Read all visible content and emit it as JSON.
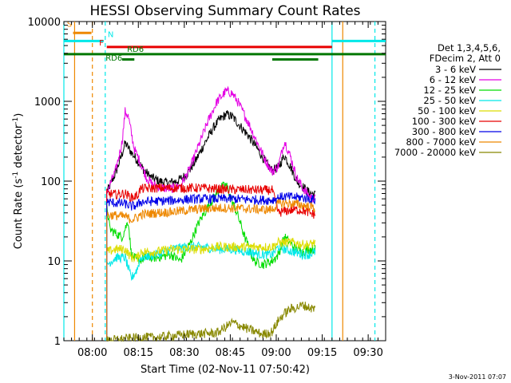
{
  "chart_data": {
    "type": "line",
    "title": "HESSI Observing Summary Count Rates",
    "xlabel": "Start Time (02-Nov-11 07:50:42)",
    "ylabel": "Count Rate (s⁻¹ detector⁻¹)",
    "ylabel_main": "Count Rate (s",
    "ylabel_exp1": "-1",
    "ylabel_mid": " detector",
    "ylabel_exp2": "-1",
    "ylabel_end": ")",
    "x_unit": "minutes after 07:50:42",
    "xlim": [
      0,
      105
    ],
    "ylim": [
      1,
      10000
    ],
    "y_scale": "log",
    "x_ticks": [
      {
        "label": "08:00",
        "value": 9.3
      },
      {
        "label": "08:15",
        "value": 24.3
      },
      {
        "label": "08:30",
        "value": 39.3
      },
      {
        "label": "08:45",
        "value": 54.3
      },
      {
        "label": "09:00",
        "value": 69.3
      },
      {
        "label": "09:15",
        "value": 84.3
      },
      {
        "label": "09:30",
        "value": 99.3
      }
    ],
    "y_ticks": [
      {
        "label": "1",
        "value": 1
      },
      {
        "label": "10",
        "value": 10
      },
      {
        "label": "100",
        "value": 100
      },
      {
        "label": "1000",
        "value": 1000
      },
      {
        "label": "10000",
        "value": 10000
      }
    ],
    "legend_header": [
      "Det 1,3,4,5,6,",
      "FDecim 2, Att 0"
    ],
    "series": [
      {
        "name": "3 - 6 keV",
        "color": "#000000",
        "points": [
          [
            14,
            72
          ],
          [
            17,
            130
          ],
          [
            19,
            220
          ],
          [
            20,
            300
          ],
          [
            22,
            230
          ],
          [
            24,
            180
          ],
          [
            26,
            140
          ],
          [
            28,
            115
          ],
          [
            31,
            100
          ],
          [
            34,
            95
          ],
          [
            37,
            100
          ],
          [
            40,
            120
          ],
          [
            43,
            180
          ],
          [
            46,
            300
          ],
          [
            49,
            480
          ],
          [
            51,
            600
          ],
          [
            53,
            690
          ],
          [
            55,
            640
          ],
          [
            57,
            520
          ],
          [
            60,
            380
          ],
          [
            63,
            260
          ],
          [
            66,
            170
          ],
          [
            68,
            135
          ],
          [
            70,
            150
          ],
          [
            72,
            210
          ],
          [
            74,
            150
          ],
          [
            76,
            100
          ],
          [
            78,
            85
          ],
          [
            80,
            72
          ],
          [
            82,
            68
          ]
        ]
      },
      {
        "name": "6 - 12 keV",
        "color": "#e400e4",
        "points": [
          [
            14,
            72
          ],
          [
            17,
            140
          ],
          [
            19,
            310
          ],
          [
            20,
            750
          ],
          [
            21,
            650
          ],
          [
            23,
            250
          ],
          [
            25,
            170
          ],
          [
            27,
            110
          ],
          [
            29,
            90
          ],
          [
            32,
            82
          ],
          [
            35,
            80
          ],
          [
            38,
            88
          ],
          [
            41,
            140
          ],
          [
            44,
            280
          ],
          [
            47,
            560
          ],
          [
            50,
            1000
          ],
          [
            53,
            1350
          ],
          [
            55,
            1250
          ],
          [
            57,
            950
          ],
          [
            60,
            560
          ],
          [
            63,
            310
          ],
          [
            66,
            175
          ],
          [
            68,
            130
          ],
          [
            70,
            155
          ],
          [
            72,
            320
          ],
          [
            74,
            200
          ],
          [
            76,
            110
          ],
          [
            78,
            82
          ],
          [
            80,
            65
          ],
          [
            82,
            60
          ]
        ]
      },
      {
        "name": "12 - 25 keV",
        "color": "#00dd00",
        "points": [
          [
            14,
            50
          ],
          [
            15,
            25
          ],
          [
            17,
            22
          ],
          [
            19,
            20
          ],
          [
            21,
            32
          ],
          [
            22,
            12
          ],
          [
            24,
            10
          ],
          [
            27,
            11
          ],
          [
            30,
            11
          ],
          [
            35,
            12
          ],
          [
            38,
            10
          ],
          [
            41,
            16
          ],
          [
            44,
            30
          ],
          [
            48,
            55
          ],
          [
            51,
            82
          ],
          [
            53,
            90
          ],
          [
            55,
            55
          ],
          [
            57,
            35
          ],
          [
            59,
            20
          ],
          [
            62,
            10
          ],
          [
            65,
            9
          ],
          [
            68,
            10
          ],
          [
            70,
            12
          ],
          [
            72,
            20
          ],
          [
            75,
            15
          ],
          [
            78,
            13
          ],
          [
            80,
            14
          ],
          [
            82,
            14
          ]
        ]
      },
      {
        "name": "25 - 50 keV",
        "color": "#00e8e8",
        "points": [
          [
            14,
            9
          ],
          [
            17,
            11
          ],
          [
            20,
            11
          ],
          [
            22,
            6
          ],
          [
            24,
            8
          ],
          [
            25,
            11
          ],
          [
            30,
            12
          ],
          [
            35,
            14
          ],
          [
            40,
            15
          ],
          [
            45,
            15
          ],
          [
            50,
            14
          ],
          [
            55,
            14
          ],
          [
            60,
            13
          ],
          [
            65,
            12
          ],
          [
            68,
            12
          ],
          [
            70,
            15
          ],
          [
            72,
            14
          ],
          [
            75,
            13
          ],
          [
            78,
            12
          ],
          [
            80,
            12
          ],
          [
            82,
            13
          ]
        ]
      },
      {
        "name": "50 - 100 keV",
        "color": "#dddd00",
        "points": [
          [
            14,
            13
          ],
          [
            17,
            14
          ],
          [
            20,
            14
          ],
          [
            22,
            11
          ],
          [
            24,
            11
          ],
          [
            25,
            13
          ],
          [
            30,
            13
          ],
          [
            35,
            14
          ],
          [
            40,
            14
          ],
          [
            45,
            14
          ],
          [
            50,
            15
          ],
          [
            55,
            15
          ],
          [
            60,
            15
          ],
          [
            65,
            15
          ],
          [
            68,
            15
          ],
          [
            70,
            17
          ],
          [
            72,
            17
          ],
          [
            75,
            17
          ],
          [
            78,
            16
          ],
          [
            80,
            16
          ],
          [
            82,
            17
          ]
        ]
      },
      {
        "name": "100 - 300 keV",
        "color": "#e80000",
        "points": [
          [
            14,
            70
          ],
          [
            17,
            68
          ],
          [
            20,
            70
          ],
          [
            22,
            62
          ],
          [
            24,
            66
          ],
          [
            25,
            80
          ],
          [
            30,
            82
          ],
          [
            35,
            82
          ],
          [
            40,
            82
          ],
          [
            45,
            82
          ],
          [
            50,
            80
          ],
          [
            55,
            78
          ],
          [
            60,
            78
          ],
          [
            65,
            77
          ],
          [
            68,
            77
          ],
          [
            70,
            40
          ],
          [
            72,
            42
          ],
          [
            75,
            44
          ],
          [
            78,
            43
          ],
          [
            80,
            40
          ],
          [
            82,
            38
          ]
        ]
      },
      {
        "name": "300 - 800 keV",
        "color": "#0000e8",
        "points": [
          [
            14,
            55
          ],
          [
            17,
            53
          ],
          [
            20,
            52
          ],
          [
            22,
            48
          ],
          [
            24,
            50
          ],
          [
            25,
            55
          ],
          [
            30,
            56
          ],
          [
            35,
            57
          ],
          [
            40,
            59
          ],
          [
            45,
            60
          ],
          [
            50,
            60
          ],
          [
            55,
            60
          ],
          [
            60,
            59
          ],
          [
            65,
            58
          ],
          [
            68,
            58
          ],
          [
            70,
            62
          ],
          [
            72,
            64
          ],
          [
            75,
            63
          ],
          [
            78,
            62
          ],
          [
            80,
            60
          ],
          [
            82,
            58
          ]
        ]
      },
      {
        "name": "800 - 7000 keV",
        "color": "#ee8800",
        "points": [
          [
            14,
            38
          ],
          [
            17,
            37
          ],
          [
            20,
            36
          ],
          [
            22,
            33
          ],
          [
            24,
            35
          ],
          [
            25,
            38
          ],
          [
            30,
            40
          ],
          [
            35,
            41
          ],
          [
            40,
            43
          ],
          [
            45,
            45
          ],
          [
            50,
            46
          ],
          [
            55,
            46
          ],
          [
            60,
            45
          ],
          [
            65,
            44
          ],
          [
            68,
            44
          ],
          [
            70,
            52
          ],
          [
            72,
            53
          ],
          [
            75,
            52
          ],
          [
            78,
            50
          ],
          [
            80,
            48
          ],
          [
            82,
            46
          ]
        ]
      },
      {
        "name": "7000 - 20000 keV",
        "color": "#888800",
        "points": [
          [
            14,
            1
          ],
          [
            25,
            1.1
          ],
          [
            30,
            1.1
          ],
          [
            40,
            1.2
          ],
          [
            50,
            1.25
          ],
          [
            55,
            1.7
          ],
          [
            60,
            1.4
          ],
          [
            65,
            1.2
          ],
          [
            68,
            1.3
          ],
          [
            70,
            1.8
          ],
          [
            72,
            2.2
          ],
          [
            74,
            2.5
          ],
          [
            76,
            2.6
          ],
          [
            78,
            2.8
          ],
          [
            80,
            2.6
          ],
          [
            82,
            2.5
          ]
        ]
      }
    ],
    "flag_bars": [
      {
        "label": "S",
        "color": "#ee8800",
        "x0": 3,
        "x1": 9,
        "y": 7200
      },
      {
        "label": "N",
        "color": "#00e8e8",
        "x0": 0,
        "x1": 13,
        "y": 5700
      },
      {
        "label": "N",
        "color": "#00e8e8",
        "x0": 87.5,
        "x1": 105,
        "y": 5700
      },
      {
        "label": "F",
        "color": "#e80000",
        "x0": 14,
        "x1": 87.5,
        "y": 4800
      },
      {
        "label": "RD6",
        "color": "#007700",
        "x0": 0,
        "x1": 105,
        "y": 3900
      },
      {
        "label": "RD6",
        "color": "#007700",
        "x0": 19,
        "x1": 23,
        "y": 3350
      },
      {
        "label": "RD6",
        "color": "#007700",
        "x0": 68,
        "x1": 83,
        "y": 3350
      }
    ],
    "flag_labels": [
      {
        "text": "S",
        "color": "#ee8800",
        "x": 1,
        "y": 8600
      },
      {
        "text": "N",
        "color": "#00e8e8",
        "x": 14.3,
        "y": 6400
      },
      {
        "text": "F",
        "color": "#e80000",
        "x": 11.5,
        "y": 5000
      },
      {
        "text": "RD6",
        "color": "#007700",
        "x": 20.6,
        "y": 4150
      },
      {
        "text": "RD6",
        "color": "#007700",
        "x": 13.6,
        "y": 3250
      }
    ],
    "vlines": [
      {
        "x": 0,
        "color": "#00e8e8",
        "dash": false
      },
      {
        "x": 3.5,
        "color": "#ee8800",
        "dash": false
      },
      {
        "x": 9.3,
        "color": "#ee8800",
        "dash": true
      },
      {
        "x": 13.5,
        "color": "#00e8e8",
        "dash": true
      },
      {
        "x": 87.5,
        "color": "#00e8e8",
        "dash": false
      },
      {
        "x": 91,
        "color": "#ee8800",
        "dash": false
      },
      {
        "x": 101.5,
        "color": "#00e8e8",
        "dash": true
      }
    ],
    "footer_date": "3-Nov-2011 07:07"
  }
}
